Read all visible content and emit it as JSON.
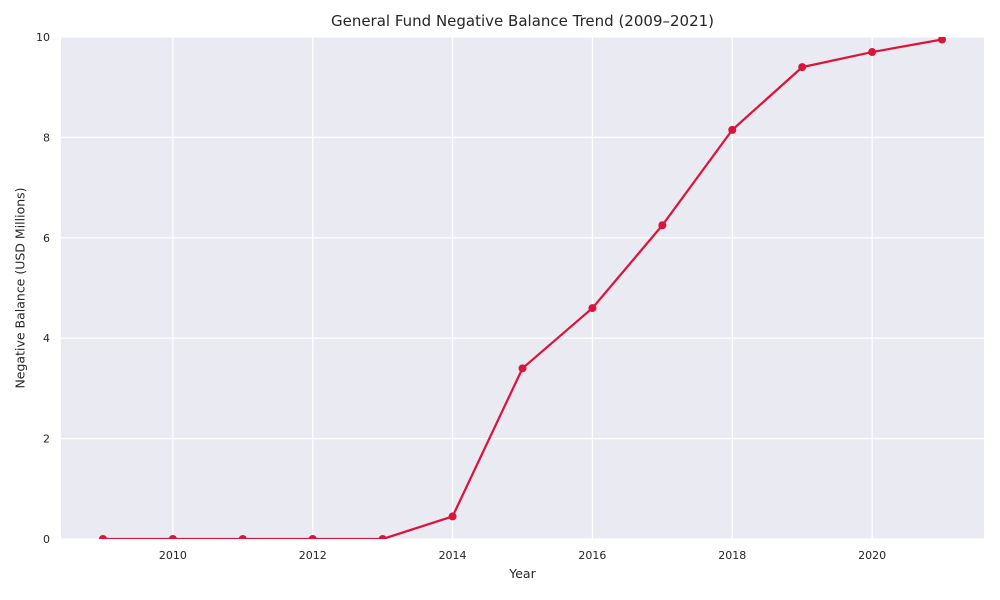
{
  "chart_data": {
    "type": "line",
    "title": "General Fund Negative Balance Trend (2009–2021)",
    "xlabel": "Year",
    "ylabel": "Negative Balance (USD Millions)",
    "x": [
      2009,
      2010,
      2011,
      2012,
      2013,
      2014,
      2015,
      2016,
      2017,
      2018,
      2019,
      2020,
      2021
    ],
    "values": [
      0,
      0,
      0,
      0,
      0,
      0.45,
      3.4,
      4.6,
      6.25,
      8.15,
      9.4,
      9.7,
      9.95
    ],
    "series_name": "Negative Balance",
    "xticks": [
      2010,
      2012,
      2014,
      2016,
      2018,
      2020
    ],
    "yticks": [
      0,
      2,
      4,
      6,
      8,
      10
    ],
    "xlim": [
      2008.4,
      2021.6
    ],
    "ylim": [
      0,
      10
    ],
    "grid": true,
    "legend": "none",
    "style": {
      "line_color": "#dc143c",
      "marker": "circle",
      "plot_background": "#eaeaf2",
      "grid_color": "#ffffff",
      "figure_background": "#ffffff",
      "text_color": "#262626"
    }
  }
}
